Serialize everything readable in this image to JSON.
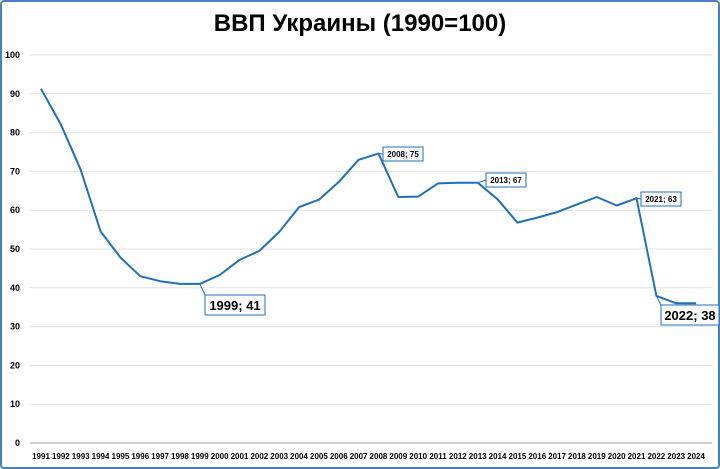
{
  "chart_data": {
    "type": "line",
    "title": "ВВП Украины (1990=100)",
    "xlabel": "",
    "ylabel": "",
    "ylim": [
      0,
      100
    ],
    "yticks": [
      "0",
      "10",
      "20",
      "30",
      "40",
      "50",
      "60",
      "70",
      "80",
      "90",
      "100"
    ],
    "grid": true,
    "line_color": "#1f6fbf",
    "x": [
      "1991",
      "1992",
      "1993",
      "1994",
      "1995",
      "1996",
      "1997",
      "1998",
      "1999",
      "2000",
      "2001",
      "2002",
      "2003",
      "2004",
      "2005",
      "2006",
      "2007",
      "2008",
      "2009",
      "2010",
      "2011",
      "2012",
      "2013",
      "2014",
      "2015",
      "2016",
      "2017",
      "2018",
      "2019",
      "2020",
      "2021",
      "2022",
      "2023",
      "2024"
    ],
    "series": [
      {
        "values": [
          91.3,
          82.1,
          70.4,
          54.5,
          47.8,
          43.0,
          41.7,
          41.0,
          41.0,
          43.3,
          47.2,
          49.5,
          54.4,
          60.8,
          62.7,
          67.3,
          73.0,
          74.6,
          63.4,
          63.5,
          66.9,
          67.1,
          67.1,
          62.8,
          56.8,
          58.1,
          59.5,
          61.5,
          63.4,
          61.2,
          63.1,
          37.9,
          36.0,
          36.0
        ]
      }
    ],
    "annotations": [
      {
        "text": "2008; 75",
        "index": 17,
        "size": "small"
      },
      {
        "text": "2013; 67",
        "index": 22,
        "size": "small"
      },
      {
        "text": "2021; 63",
        "index": 30,
        "size": "small"
      },
      {
        "text": "1999; 41",
        "index": 8,
        "size": "large"
      },
      {
        "text": "2022; 38",
        "index": 31,
        "size": "large"
      }
    ]
  }
}
